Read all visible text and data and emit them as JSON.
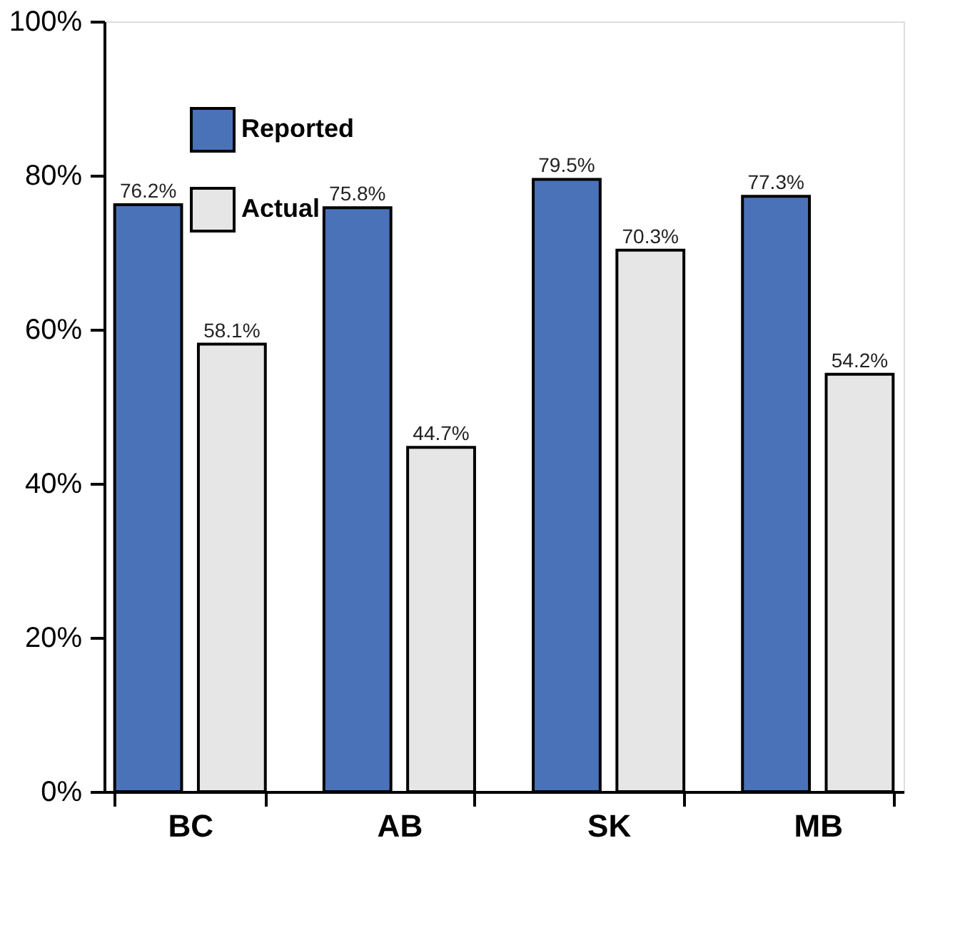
{
  "chart_data": {
    "type": "bar",
    "categories": [
      "BC",
      "AB",
      "SK",
      "MB"
    ],
    "series": [
      {
        "name": "Reported",
        "color": "#4a72b8",
        "values": [
          76.2,
          75.8,
          79.5,
          77.3
        ],
        "value_labels": [
          "76.2%",
          "75.8%",
          "79.5%",
          "77.3%"
        ]
      },
      {
        "name": "Actual",
        "color": "#e6e6e6",
        "values": [
          58.1,
          44.7,
          70.3,
          54.2
        ],
        "value_labels": [
          "58.1%",
          "44.7%",
          "70.3%",
          "54.2%"
        ]
      }
    ],
    "ylim": [
      0,
      100
    ],
    "yticks": [
      {
        "value": 0,
        "label": "0%"
      },
      {
        "value": 20,
        "label": "20%"
      },
      {
        "value": 40,
        "label": "40%"
      },
      {
        "value": 60,
        "label": "60%"
      },
      {
        "value": 80,
        "label": "80%"
      },
      {
        "value": 100,
        "label": "100%"
      }
    ],
    "legend": "top left",
    "grid": false
  }
}
